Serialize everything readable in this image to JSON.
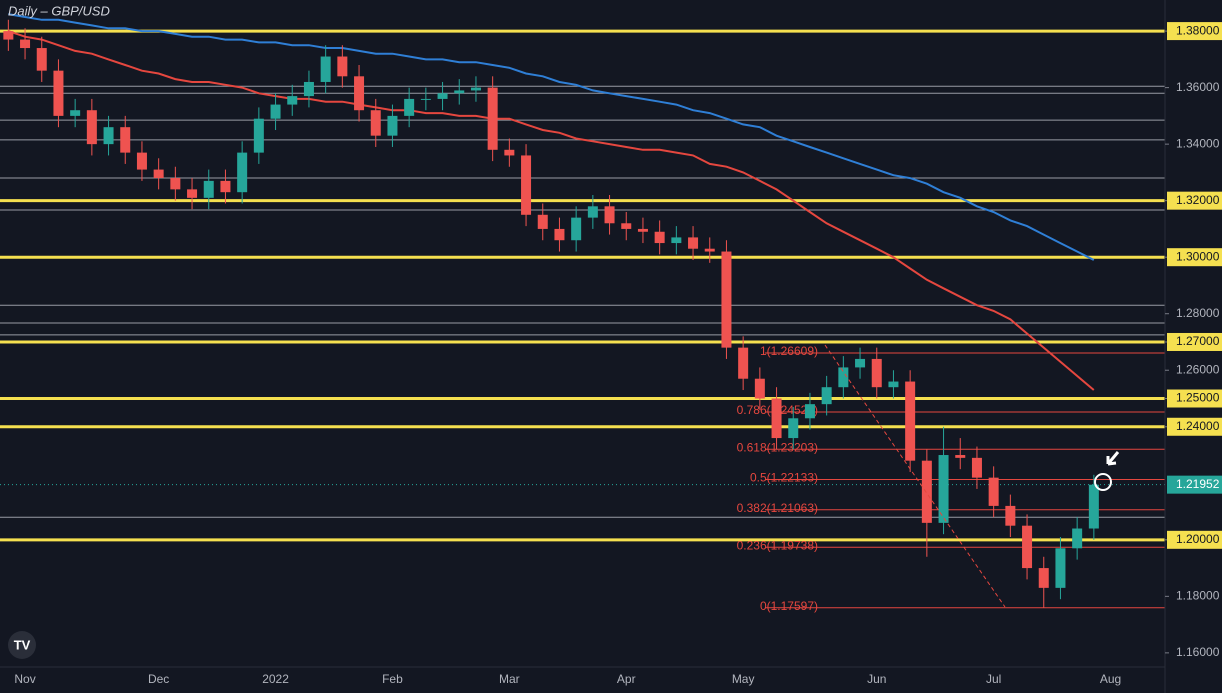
{
  "chart_data": {
    "type": "candlestick",
    "title": "Daily – GBP/USD",
    "categories": [
      null,
      "Nov",
      null,
      null,
      null,
      null,
      null,
      null,
      null,
      "Dec",
      null,
      null,
      null,
      null,
      null,
      null,
      "2022",
      null,
      null,
      null,
      null,
      null,
      null,
      "Feb",
      null,
      null,
      null,
      null,
      null,
      null,
      "Mar",
      null,
      null,
      null,
      null,
      null,
      null,
      "Apr",
      null,
      null,
      null,
      null,
      null,
      null,
      "May",
      null,
      null,
      null,
      null,
      null,
      null,
      null,
      "Jun",
      null,
      null,
      null,
      null,
      null,
      null,
      "Jul",
      null,
      null,
      null,
      null,
      null,
      null,
      "Aug"
    ],
    "open": [
      1.38,
      1.377,
      1.374,
      1.366,
      1.35,
      1.352,
      1.34,
      1.346,
      1.337,
      1.331,
      1.328,
      1.324,
      1.321,
      1.327,
      1.323,
      1.337,
      1.349,
      1.354,
      1.357,
      1.362,
      1.371,
      1.364,
      1.352,
      1.343,
      1.35,
      1.356,
      1.356,
      1.358,
      1.359,
      1.36,
      1.338,
      1.336,
      1.315,
      1.31,
      1.306,
      1.314,
      1.318,
      1.312,
      1.31,
      1.309,
      1.305,
      1.307,
      1.303,
      1.302,
      1.268,
      1.257,
      1.25,
      1.236,
      1.243,
      1.248,
      1.254,
      1.261,
      1.264,
      1.254,
      1.256,
      1.228,
      1.206,
      1.23,
      1.229,
      1.222,
      1.212,
      1.205,
      1.19,
      1.183,
      1.197,
      1.204,
      null
    ],
    "high": [
      1.384,
      1.381,
      1.378,
      1.37,
      1.356,
      1.356,
      1.35,
      1.35,
      1.341,
      1.335,
      1.332,
      1.328,
      1.331,
      1.331,
      1.341,
      1.353,
      1.358,
      1.361,
      1.366,
      1.375,
      1.375,
      1.368,
      1.356,
      1.354,
      1.36,
      1.36,
      1.362,
      1.363,
      1.364,
      1.364,
      1.342,
      1.34,
      1.319,
      1.314,
      1.318,
      1.322,
      1.322,
      1.316,
      1.314,
      1.313,
      1.311,
      1.311,
      1.307,
      1.306,
      1.272,
      1.261,
      1.254,
      1.247,
      1.252,
      1.258,
      1.265,
      1.268,
      1.268,
      1.26,
      1.26,
      1.232,
      1.24,
      1.236,
      1.233,
      1.226,
      1.216,
      1.209,
      1.194,
      1.201,
      1.208,
      1.223,
      null
    ],
    "low": [
      1.373,
      1.37,
      1.362,
      1.346,
      1.346,
      1.336,
      1.336,
      1.333,
      1.327,
      1.324,
      1.32,
      1.317,
      1.317,
      1.319,
      1.319,
      1.333,
      1.345,
      1.35,
      1.353,
      1.358,
      1.36,
      1.348,
      1.339,
      1.339,
      1.346,
      1.352,
      1.352,
      1.354,
      1.355,
      1.334,
      1.332,
      1.311,
      1.306,
      1.302,
      1.302,
      1.31,
      1.308,
      1.306,
      1.305,
      1.301,
      1.301,
      1.299,
      1.298,
      1.264,
      1.253,
      1.246,
      1.232,
      1.232,
      1.239,
      1.244,
      1.25,
      1.257,
      1.25,
      1.25,
      1.224,
      1.194,
      1.202,
      1.225,
      1.218,
      1.208,
      1.201,
      1.186,
      1.176,
      1.179,
      1.193,
      1.2,
      null
    ],
    "close": [
      1.377,
      1.374,
      1.366,
      1.35,
      1.352,
      1.34,
      1.346,
      1.337,
      1.331,
      1.328,
      1.324,
      1.321,
      1.327,
      1.323,
      1.337,
      1.349,
      1.354,
      1.357,
      1.362,
      1.371,
      1.364,
      1.352,
      1.343,
      1.35,
      1.356,
      1.356,
      1.358,
      1.359,
      1.36,
      1.338,
      1.336,
      1.315,
      1.31,
      1.306,
      1.314,
      1.318,
      1.312,
      1.31,
      1.309,
      1.305,
      1.307,
      1.303,
      1.302,
      1.268,
      1.257,
      1.25,
      1.236,
      1.243,
      1.248,
      1.254,
      1.261,
      1.264,
      1.254,
      1.256,
      1.228,
      1.206,
      1.23,
      1.229,
      1.222,
      1.212,
      1.205,
      1.19,
      1.183,
      1.197,
      1.204,
      1.2195,
      null
    ],
    "up_color": "#26a69a",
    "down_color": "#ef5350",
    "overlays": [
      {
        "color": "#2f7fd6",
        "values": [
          1.386,
          1.385,
          1.384,
          1.384,
          1.383,
          1.382,
          1.381,
          1.381,
          1.38,
          1.38,
          1.379,
          1.378,
          1.378,
          1.377,
          1.377,
          1.376,
          1.376,
          1.375,
          1.375,
          1.374,
          1.374,
          1.373,
          1.372,
          1.372,
          1.371,
          1.37,
          1.37,
          1.369,
          1.369,
          1.368,
          1.367,
          1.365,
          1.364,
          1.362,
          1.361,
          1.359,
          1.358,
          1.357,
          1.356,
          1.355,
          1.354,
          1.352,
          1.351,
          1.349,
          1.347,
          1.346,
          1.343,
          1.341,
          1.339,
          1.337,
          1.335,
          1.333,
          1.331,
          1.329,
          1.328,
          1.326,
          1.323,
          1.321,
          1.318,
          1.316,
          1.313,
          1.311,
          1.308,
          1.305,
          1.302,
          1.299,
          null
        ]
      },
      {
        "color": "#e5473f",
        "values": [
          1.38,
          1.378,
          1.377,
          1.375,
          1.373,
          1.372,
          1.37,
          1.368,
          1.366,
          1.365,
          1.363,
          1.362,
          1.362,
          1.361,
          1.36,
          1.358,
          1.357,
          1.356,
          1.356,
          1.355,
          1.355,
          1.354,
          1.353,
          1.352,
          1.352,
          1.351,
          1.351,
          1.35,
          1.35,
          1.349,
          1.349,
          1.347,
          1.345,
          1.344,
          1.342,
          1.341,
          1.34,
          1.339,
          1.338,
          1.338,
          1.337,
          1.336,
          1.333,
          1.332,
          1.33,
          1.327,
          1.324,
          1.32,
          1.316,
          1.312,
          1.309,
          1.306,
          1.303,
          1.3,
          1.296,
          1.292,
          1.289,
          1.286,
          1.283,
          1.281,
          1.278,
          1.273,
          1.268,
          1.263,
          1.258,
          1.253,
          null
        ]
      }
    ],
    "levels": [
      {
        "value": 1.38,
        "color": "#f5e050"
      },
      {
        "value": 1.32,
        "color": "#f5e050"
      },
      {
        "value": 1.3,
        "color": "#f5e050"
      },
      {
        "value": 1.27,
        "color": "#f5e050"
      },
      {
        "value": 1.25,
        "color": "#f5e050"
      },
      {
        "value": 1.24,
        "color": "#f5e050"
      },
      {
        "value": 1.2,
        "color": "#f5e050"
      },
      {
        "value": 1.3605,
        "color": "#d1d4dc"
      },
      {
        "value": 1.358,
        "color": "#d1d4dc"
      },
      {
        "value": 1.3485,
        "color": "#d1d4dc"
      },
      {
        "value": 1.3415,
        "color": "#d1d4dc"
      },
      {
        "value": 1.328,
        "color": "#d1d4dc"
      },
      {
        "value": 1.3167,
        "color": "#d1d4dc"
      },
      {
        "value": 1.283,
        "color": "#d1d4dc"
      },
      {
        "value": 1.2767,
        "color": "#d1d4dc"
      },
      {
        "value": 1.2725,
        "color": "#d1d4dc"
      },
      {
        "value": 1.208,
        "color": "#d1d4dc"
      }
    ],
    "fib_color": "#e5473f",
    "fib_levels": [
      {
        "value": 1.26609,
        "label": "1(1.26609)"
      },
      {
        "value": 1.24524,
        "label": "0.786(1.24524)"
      },
      {
        "value": 1.23203,
        "label": "0.618(1.23203)"
      },
      {
        "value": 1.22133,
        "label": "0.5(1.22133)"
      },
      {
        "value": 1.21063,
        "label": "0.382(1.21063)"
      },
      {
        "value": 1.19738,
        "label": "0.236(1.19738)"
      },
      {
        "value": 1.17597,
        "label": "0(1.17597)"
      }
    ],
    "last_price": {
      "value": 1.21952,
      "label": "1.21952",
      "color": "#26a69a"
    },
    "ylim": [
      1.1458,
      1.391
    ],
    "yticks": [
      {
        "value": 1.38,
        "label": "1.38000"
      },
      {
        "value": 1.36,
        "label": "1.36000"
      },
      {
        "value": 1.34,
        "label": "1.34000"
      },
      {
        "value": 1.32,
        "label": "1.32000"
      },
      {
        "value": 1.3,
        "label": "1.30000"
      },
      {
        "value": 1.28,
        "label": "1.28000"
      },
      {
        "value": 1.27,
        "label": "1.27000"
      },
      {
        "value": 1.26,
        "label": "1.26000"
      },
      {
        "value": 1.25,
        "label": "1.25000"
      },
      {
        "value": 1.24,
        "label": "1.24000"
      },
      {
        "value": 1.2,
        "label": "1.20000"
      },
      {
        "value": 1.18,
        "label": "1.18000"
      },
      {
        "value": 1.16,
        "label": "1.16000"
      }
    ]
  }
}
